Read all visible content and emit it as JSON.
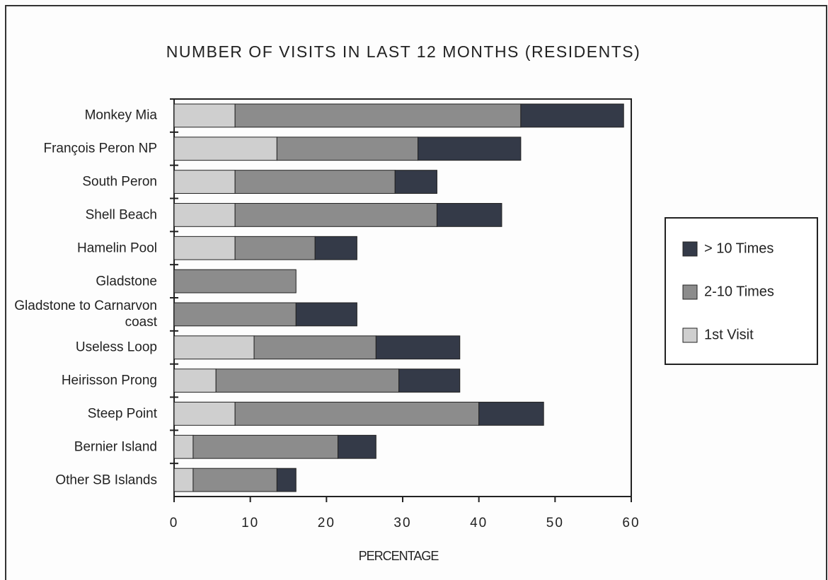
{
  "chart_data": {
    "type": "stacked-barh",
    "title": "NUMBER OF VISITS IN LAST 12 MONTHS (RESIDENTS)",
    "x_label": "PERCENTAGE",
    "categories": [
      "Monkey Mia",
      "François Peron NP",
      "South Peron",
      "Shell Beach",
      "Hamelin Pool",
      "Gladstone",
      "Gladstone to Carnarvon coast",
      "Useless Loop",
      "Heirisson Prong",
      "Steep Point",
      "Bernier Island",
      "Other SB Islands"
    ],
    "series": [
      {
        "name": "1st Visit",
        "color": "#cfcfcf",
        "values": [
          8,
          13.5,
          8,
          8,
          8,
          0,
          0,
          10.5,
          5.5,
          8,
          2.5,
          2.5
        ]
      },
      {
        "name": "2-10 Times",
        "color": "#8c8c8c",
        "values": [
          37.5,
          18.5,
          21,
          26.5,
          10.5,
          16,
          16,
          16,
          24,
          32,
          19,
          11
        ]
      },
      {
        "name": "> 10 Times",
        "color": "#343a48",
        "values": [
          13.5,
          13.5,
          5.5,
          8.5,
          5.5,
          0,
          8,
          11,
          8,
          8.5,
          5,
          2.5
        ]
      }
    ],
    "xlim": [
      0,
      60
    ],
    "xticks": [
      0,
      10,
      20,
      30,
      40,
      50,
      60
    ],
    "legend": "right"
  }
}
